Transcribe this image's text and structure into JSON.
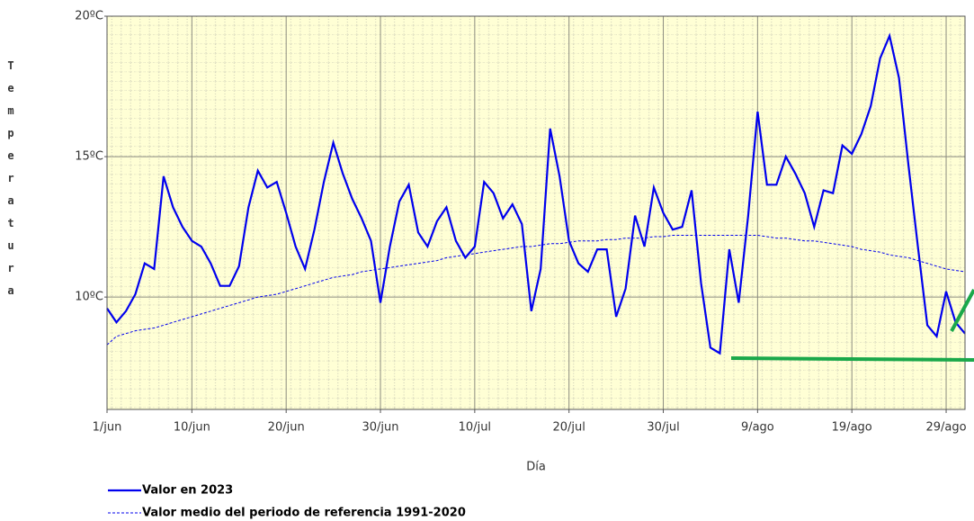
{
  "chart_data": {
    "type": "line",
    "x_label": "Día",
    "y_label": "Temperatura",
    "categories": [
      "1/jun",
      null,
      null,
      null,
      null,
      null,
      null,
      null,
      null,
      "10/jun",
      null,
      null,
      null,
      null,
      null,
      null,
      null,
      null,
      null,
      "20/jun",
      null,
      null,
      null,
      null,
      null,
      null,
      null,
      null,
      null,
      "30/jun",
      null,
      null,
      null,
      null,
      null,
      null,
      null,
      null,
      null,
      "10/jul",
      null,
      null,
      null,
      null,
      null,
      null,
      null,
      null,
      null,
      "20/jul",
      null,
      null,
      null,
      null,
      null,
      null,
      null,
      null,
      null,
      "30/jul",
      null,
      null,
      null,
      null,
      null,
      null,
      null,
      null,
      null,
      "9/ago",
      null,
      null,
      null,
      null,
      null,
      null,
      null,
      null,
      null,
      "19/ago",
      null,
      null,
      null,
      null,
      null,
      null,
      null,
      null,
      null,
      "29/ago",
      null,
      null
    ],
    "series": [
      {
        "name": "Valor en 2023",
        "color": "#0000ee",
        "dashed": false,
        "values": [
          9.6,
          9.1,
          9.5,
          10.1,
          11.2,
          11.0,
          14.3,
          13.2,
          12.5,
          12.0,
          11.8,
          11.2,
          10.4,
          10.4,
          11.1,
          13.2,
          14.5,
          13.9,
          14.1,
          13.0,
          11.8,
          11.0,
          12.4,
          14.1,
          15.5,
          14.4,
          13.5,
          12.8,
          12.0,
          9.8,
          11.8,
          13.4,
          14.0,
          12.3,
          11.8,
          12.7,
          13.2,
          12.0,
          11.4,
          11.8,
          14.1,
          13.7,
          12.8,
          13.3,
          12.6,
          9.5,
          11.0,
          16.0,
          14.3,
          12.0,
          11.2,
          10.9,
          11.7,
          11.7,
          9.3,
          10.3,
          12.9,
          11.8,
          13.9,
          13.0,
          12.4,
          12.5,
          13.8,
          10.5,
          8.2,
          8.0,
          11.7,
          9.8,
          12.9,
          16.6,
          14.0,
          14.0,
          15.0,
          14.4,
          13.7,
          12.5,
          13.8,
          13.7,
          15.4,
          15.1,
          15.8,
          16.8,
          18.5,
          19.3,
          17.8,
          14.7,
          11.8,
          9.0,
          8.6,
          10.2,
          9.1,
          8.7
        ]
      },
      {
        "name": "Valor medio del periodo de referencia 1991-2020",
        "color": "#0000ee",
        "dashed": true,
        "values": [
          8.3,
          8.6,
          8.7,
          8.8,
          8.85,
          8.9,
          9.0,
          9.1,
          9.2,
          9.3,
          9.4,
          9.5,
          9.6,
          9.7,
          9.8,
          9.9,
          10.0,
          10.05,
          10.1,
          10.2,
          10.3,
          10.4,
          10.5,
          10.6,
          10.7,
          10.75,
          10.8,
          10.9,
          10.95,
          11.0,
          11.05,
          11.1,
          11.15,
          11.2,
          11.25,
          11.3,
          11.4,
          11.45,
          11.5,
          11.55,
          11.6,
          11.65,
          11.7,
          11.75,
          11.8,
          11.8,
          11.85,
          11.9,
          11.9,
          11.95,
          12.0,
          12.0,
          12.0,
          12.05,
          12.05,
          12.1,
          12.1,
          12.1,
          12.15,
          12.15,
          12.2,
          12.2,
          12.2,
          12.2,
          12.2,
          12.2,
          12.2,
          12.2,
          12.2,
          12.2,
          12.15,
          12.1,
          12.1,
          12.05,
          12.0,
          12.0,
          11.95,
          11.9,
          11.85,
          11.8,
          11.7,
          11.65,
          11.6,
          11.5,
          11.45,
          11.4,
          11.3,
          11.2,
          11.1,
          11.0,
          10.95,
          10.9
        ]
      }
    ],
    "ylim": [
      6,
      20
    ],
    "yticks": [
      {
        "value": 10,
        "label": "10ºC"
      },
      {
        "value": 15,
        "label": "15ºC"
      },
      {
        "value": 20,
        "label": "20ºC"
      }
    ],
    "grid": true
  }
}
